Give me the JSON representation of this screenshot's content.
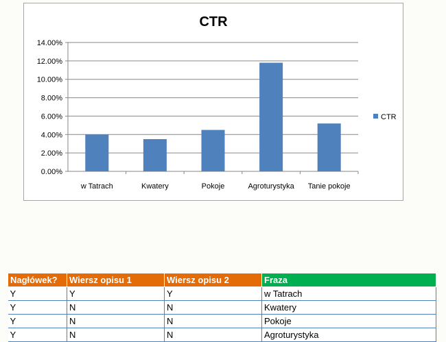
{
  "chart_data": {
    "type": "bar",
    "title": "CTR",
    "categories": [
      "w Tatrach",
      "Kwatery",
      "Pokoje",
      "Agroturystyka",
      "Tanie pokoje"
    ],
    "series": [
      {
        "name": "CTR",
        "values": [
          4.0,
          3.5,
          4.5,
          11.8,
          5.2
        ],
        "color": "#4f81bd"
      }
    ],
    "ylim": [
      0,
      14
    ],
    "yticks": [
      0,
      2,
      4,
      6,
      8,
      10,
      12,
      14
    ],
    "ytick_labels": [
      "0.00%",
      "2.00%",
      "4.00%",
      "6.00%",
      "8.00%",
      "10.00%",
      "12.00%",
      "14.00%"
    ],
    "grid": true,
    "legend": "right"
  },
  "table": {
    "headers": [
      "Nagłówek?",
      "Wiersz opisu 1",
      "Wiersz opisu 2",
      "Fraza"
    ],
    "header_colors": [
      "#e36c09",
      "#e36c09",
      "#e36c09",
      "#00b050"
    ],
    "rows": [
      [
        "Y",
        "Y",
        "Y",
        "w Tatrach"
      ],
      [
        "Y",
        "N",
        "N",
        "Kwatery"
      ],
      [
        "Y",
        "N",
        "N",
        "Pokoje"
      ],
      [
        "Y",
        "N",
        "N",
        "Agroturystyka"
      ]
    ]
  }
}
